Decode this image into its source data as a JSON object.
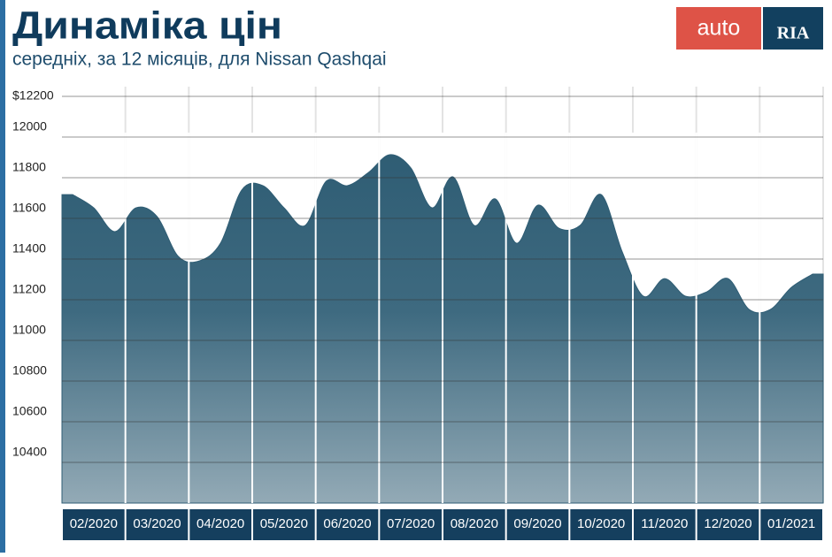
{
  "logo": {
    "left": "auto",
    "right": "RIA"
  },
  "chart_data": {
    "type": "area",
    "title": "Динаміка цін",
    "subtitle": "середніх, за 12 місяців, для Nissan Qashqai",
    "categories": [
      null,
      "02/2020",
      null,
      null,
      "03/2020",
      null,
      null,
      "04/2020",
      null,
      null,
      "05/2020",
      null,
      null,
      "06/2020",
      null,
      null,
      "07/2020",
      null,
      null,
      "08/2020",
      null,
      null,
      "09/2020",
      null,
      null,
      "10/2020",
      null,
      null,
      "11/2020",
      null,
      null,
      "12/2020",
      null,
      null,
      "01/2021",
      null
    ],
    "values": [
      11717,
      11652,
      11535,
      11652,
      11609,
      11413,
      11391,
      11478,
      11739,
      11761,
      11652,
      11565,
      11783,
      11761,
      11826,
      11913,
      11848,
      11652,
      11804,
      11565,
      11696,
      11478,
      11665,
      11552,
      11565,
      11717,
      11435,
      11217,
      11304,
      11217,
      11239,
      11304,
      11152,
      11152,
      11261,
      11326
    ],
    "color": "#2f5d74",
    "ylim": [
      10200,
      12200
    ],
    "yticks": [
      10400,
      10600,
      10800,
      11000,
      11200,
      11400,
      11600,
      11800,
      12000,
      {
        "value": 12200,
        "label": "$12200"
      }
    ],
    "grid": true
  }
}
